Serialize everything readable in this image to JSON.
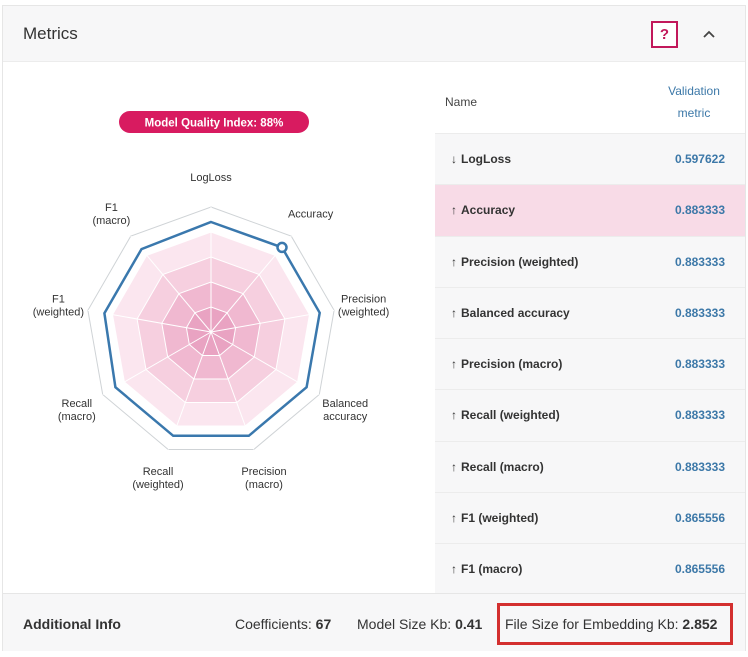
{
  "header": {
    "title": "Metrics",
    "help_label": "?",
    "collapse_icon": "^"
  },
  "model_quality": {
    "label": "Model Quality Index: 88%",
    "value": 88
  },
  "radar": {
    "axes": [
      "LogLoss",
      "Accuracy",
      "Precision (weighted)",
      "Balanced accuracy",
      "Precision (macro)",
      "Recall (weighted)",
      "Recall (macro)",
      "F1 (weighted)",
      "F1 (macro)"
    ],
    "axis_label_lines": [
      [
        "LogLoss"
      ],
      [
        "Accuracy"
      ],
      [
        "Precision",
        "(weighted)"
      ],
      [
        "Balanced",
        "accuracy"
      ],
      [
        "Precision",
        "(macro)"
      ],
      [
        "Recall",
        "(weighted)"
      ],
      [
        "Recall",
        "(macro)"
      ],
      [
        "F1",
        "(weighted)"
      ],
      [
        "F1",
        "(macro)"
      ]
    ],
    "values": [
      0.88,
      0.883333,
      0.883333,
      0.883333,
      0.883333,
      0.883333,
      0.883333,
      0.865556,
      0.865556
    ],
    "highlighted_axis": "Accuracy",
    "line_color": "#3a78ad",
    "band_colors": [
      "#fbe6ef",
      "#f6cfdf",
      "#f0b8d0",
      "#e9a3c2"
    ]
  },
  "table": {
    "headers": {
      "name": "Name",
      "value_line1": "Validation",
      "value_line2": "metric"
    },
    "rows": [
      {
        "direction": "↓",
        "name": "LogLoss",
        "value": "0.597622"
      },
      {
        "direction": "↑",
        "name": "Accuracy",
        "value": "0.883333"
      },
      {
        "direction": "↑",
        "name": "Precision (weighted)",
        "value": "0.883333"
      },
      {
        "direction": "↑",
        "name": "Balanced accuracy",
        "value": "0.883333"
      },
      {
        "direction": "↑",
        "name": "Precision (macro)",
        "value": "0.883333"
      },
      {
        "direction": "↑",
        "name": "Recall (weighted)",
        "value": "0.883333"
      },
      {
        "direction": "↑",
        "name": "Recall (macro)",
        "value": "0.883333"
      },
      {
        "direction": "↑",
        "name": "F1 (weighted)",
        "value": "0.865556"
      },
      {
        "direction": "↑",
        "name": "F1 (macro)",
        "value": "0.865556"
      }
    ],
    "highlighted_row": "Accuracy"
  },
  "footer": {
    "label": "Additional Info",
    "coefficients_label": "Coefficients:",
    "coefficients_value": "67",
    "model_size_label": "Model Size Kb:",
    "model_size_value": "0.41",
    "embed_size_label": "File Size for Embedding Kb:",
    "embed_size_value": "2.852"
  },
  "colors": {
    "accent": "#c2185b",
    "link_blue": "#3c78a8",
    "highlight_row": "#f8dbe7",
    "annotation_red": "#d32f2f"
  }
}
